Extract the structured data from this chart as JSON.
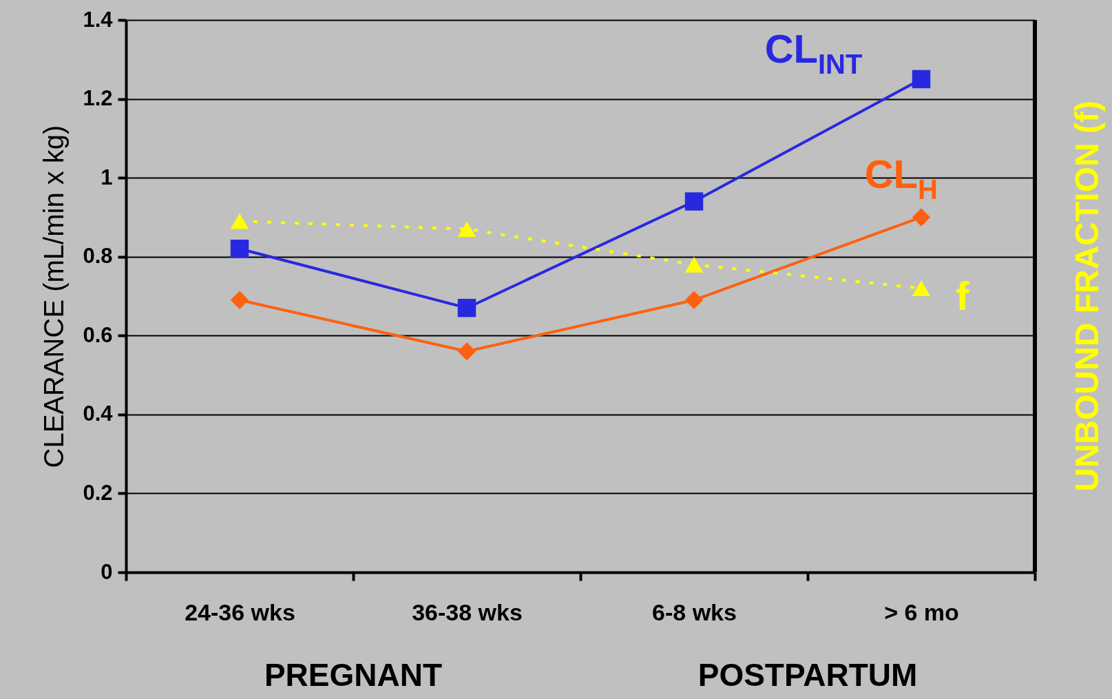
{
  "chart_data": {
    "type": "line",
    "ylabel": "CLEARANCE (mL/min x kg)",
    "y2label": "UNBOUND FRACTION (f)",
    "categories": [
      "24-36 wks",
      "36-38 wks",
      "6-8 wks",
      "> 6 mo"
    ],
    "series": [
      {
        "name": "CL$_{INT}$",
        "color": "#2828e0",
        "marker": "square",
        "line_style": "solid",
        "values": [
          0.82,
          0.67,
          0.94,
          1.25
        ]
      },
      {
        "name": "CL$_{H}$",
        "color": "#ff6010",
        "marker": "diamond",
        "line_style": "solid",
        "values": [
          0.69,
          0.56,
          0.69,
          0.9
        ]
      },
      {
        "name": "f",
        "color": "#ffff00",
        "marker": "triangle",
        "line_style": "dotted",
        "values": [
          0.89,
          0.87,
          0.78,
          0.72
        ]
      }
    ],
    "ylim": [
      0,
      1.4
    ],
    "yticks": [
      0,
      0.2,
      0.4,
      0.6,
      0.8,
      1,
      1.2,
      1.4
    ],
    "grid": "y",
    "annotations": [
      "PREGNANT",
      "POSTPARTUM"
    ]
  }
}
